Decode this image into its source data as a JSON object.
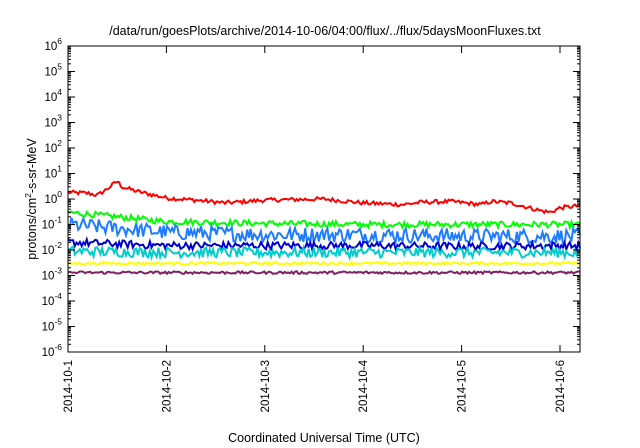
{
  "chart_data": {
    "type": "line",
    "title": "/data/run/goesPlots/archive/2014-10-06/04:00/flux/../flux/5daysMoonFluxes.txt",
    "xlabel": "Coordinated Universal Time (UTC)",
    "ylabel": {
      "prefix": "protons/cm",
      "sup": "2",
      "suffix": "-s-sr-MeV"
    },
    "y_scale": "log",
    "ylim_exp": [
      -6,
      6
    ],
    "y_ticks": [
      {
        "base": "10",
        "exp": "6"
      },
      {
        "base": "10",
        "exp": "5"
      },
      {
        "base": "10",
        "exp": "4"
      },
      {
        "base": "10",
        "exp": "3"
      },
      {
        "base": "10",
        "exp": "2"
      },
      {
        "base": "10",
        "exp": "1"
      },
      {
        "base": "10",
        "exp": "0"
      },
      {
        "base": "10",
        "exp": "-1"
      },
      {
        "base": "10",
        "exp": "-2"
      },
      {
        "base": "10",
        "exp": "-3"
      },
      {
        "base": "10",
        "exp": "-4"
      },
      {
        "base": "10",
        "exp": "-5"
      },
      {
        "base": "10",
        "exp": "-6"
      }
    ],
    "x_ticks": [
      "2014-10-1",
      "2014-10-2",
      "2014-10-3",
      "2014-10-4",
      "2014-10-5",
      "2014-10-6"
    ],
    "x_range_days": [
      0,
      5.2
    ],
    "grid": false,
    "series": [
      {
        "color": "#ff0000",
        "base": 1.0,
        "noise": 0.08,
        "points": [
          [
            0,
            1.8
          ],
          [
            0.2,
            1.7
          ],
          [
            0.3,
            1.4
          ],
          [
            0.4,
            2.5
          ],
          [
            0.5,
            5.0
          ],
          [
            0.55,
            3.0
          ],
          [
            0.7,
            2.0
          ],
          [
            1.0,
            1.1
          ],
          [
            1.3,
            0.9
          ],
          [
            1.6,
            0.7
          ],
          [
            2.0,
            0.9
          ],
          [
            2.3,
            0.95
          ],
          [
            2.6,
            1.0
          ],
          [
            3.0,
            0.7
          ],
          [
            3.4,
            0.6
          ],
          [
            3.6,
            0.75
          ],
          [
            3.9,
            0.8
          ],
          [
            4.2,
            0.6
          ],
          [
            4.3,
            0.8
          ],
          [
            4.5,
            0.7
          ],
          [
            4.8,
            0.35
          ],
          [
            4.9,
            0.3
          ],
          [
            5.0,
            0.45
          ],
          [
            5.3,
            0.6
          ],
          [
            5.6,
            1.3
          ],
          [
            5.7,
            2.0
          ],
          [
            5.9,
            0.9
          ],
          [
            6.1,
            0.5
          ],
          [
            6.25,
            0.6
          ]
        ]
      },
      {
        "color": "#00ff00",
        "base": 0.1,
        "noise": 0.12,
        "points": [
          [
            0,
            0.3
          ],
          [
            0.5,
            0.2
          ],
          [
            1,
            0.13
          ],
          [
            2,
            0.11
          ],
          [
            3,
            0.1
          ],
          [
            4,
            0.1
          ],
          [
            5,
            0.1
          ],
          [
            6,
            0.09
          ],
          [
            6.25,
            0.1
          ]
        ]
      },
      {
        "color": "#1e7dff",
        "base": 0.03,
        "noise": 0.3,
        "points": [
          [
            0,
            0.1
          ],
          [
            1,
            0.05
          ],
          [
            2,
            0.04
          ],
          [
            3,
            0.04
          ],
          [
            4,
            0.035
          ],
          [
            5,
            0.035
          ],
          [
            6,
            0.03
          ],
          [
            6.25,
            0.03
          ]
        ]
      },
      {
        "color": "#0000cc",
        "base": 0.015,
        "noise": 0.15,
        "points": [
          [
            0,
            0.02
          ],
          [
            1,
            0.015
          ],
          [
            2,
            0.015
          ],
          [
            3,
            0.015
          ],
          [
            4,
            0.014
          ],
          [
            5,
            0.015
          ],
          [
            6,
            0.012
          ],
          [
            6.25,
            0.013
          ]
        ]
      },
      {
        "color": "#00cccc",
        "base": 0.008,
        "noise": 0.2,
        "points": [
          [
            0,
            0.009
          ],
          [
            1,
            0.008
          ],
          [
            2,
            0.008
          ],
          [
            3,
            0.008
          ],
          [
            4,
            0.008
          ],
          [
            5,
            0.008
          ],
          [
            6,
            0.007
          ],
          [
            6.25,
            0.008
          ]
        ]
      },
      {
        "color": "#ffff00",
        "base": 0.003,
        "noise": 0.05,
        "points": [
          [
            0,
            0.003
          ],
          [
            6.25,
            0.003
          ]
        ]
      },
      {
        "color": "#802060",
        "base": 0.0013,
        "noise": 0.05,
        "points": [
          [
            0,
            0.0013
          ],
          [
            6.25,
            0.0013
          ]
        ]
      }
    ]
  }
}
